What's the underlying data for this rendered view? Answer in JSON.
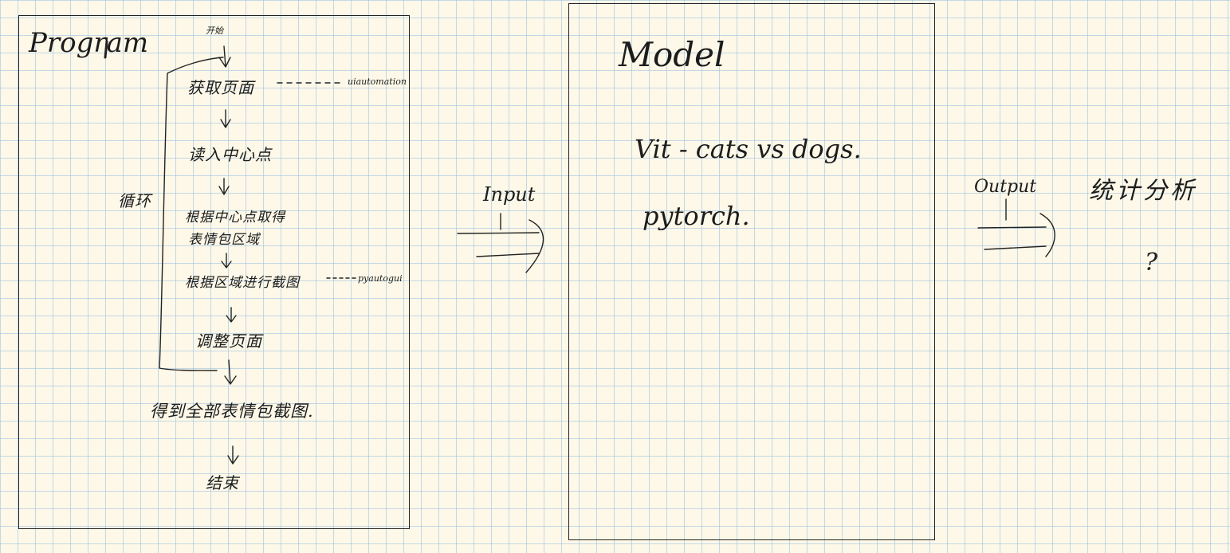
{
  "program": {
    "title": "Program",
    "loop_label": "循环",
    "steps": [
      {
        "id": "start",
        "text": "开始"
      },
      {
        "id": "get-page",
        "text": "获取页面",
        "tool": "uiautomation"
      },
      {
        "id": "read-center",
        "text": "读入中心点"
      },
      {
        "id": "get-region-1",
        "text": "根据中心点取得"
      },
      {
        "id": "get-region-2",
        "text": "表情包区域"
      },
      {
        "id": "screenshot",
        "text": "根据区域进行截图",
        "tool": "pyautogui"
      },
      {
        "id": "adjust-page",
        "text": "调整页面"
      },
      {
        "id": "all-screenshots",
        "text": "得到全部表情包截图."
      },
      {
        "id": "end",
        "text": "结束"
      }
    ]
  },
  "input_label": "Input",
  "model": {
    "title": "Model",
    "lines": [
      "Vit - cats vs dogs.",
      "pytorch."
    ]
  },
  "output_label": "Output",
  "result": {
    "text": "统计分析",
    "mark": "?"
  }
}
